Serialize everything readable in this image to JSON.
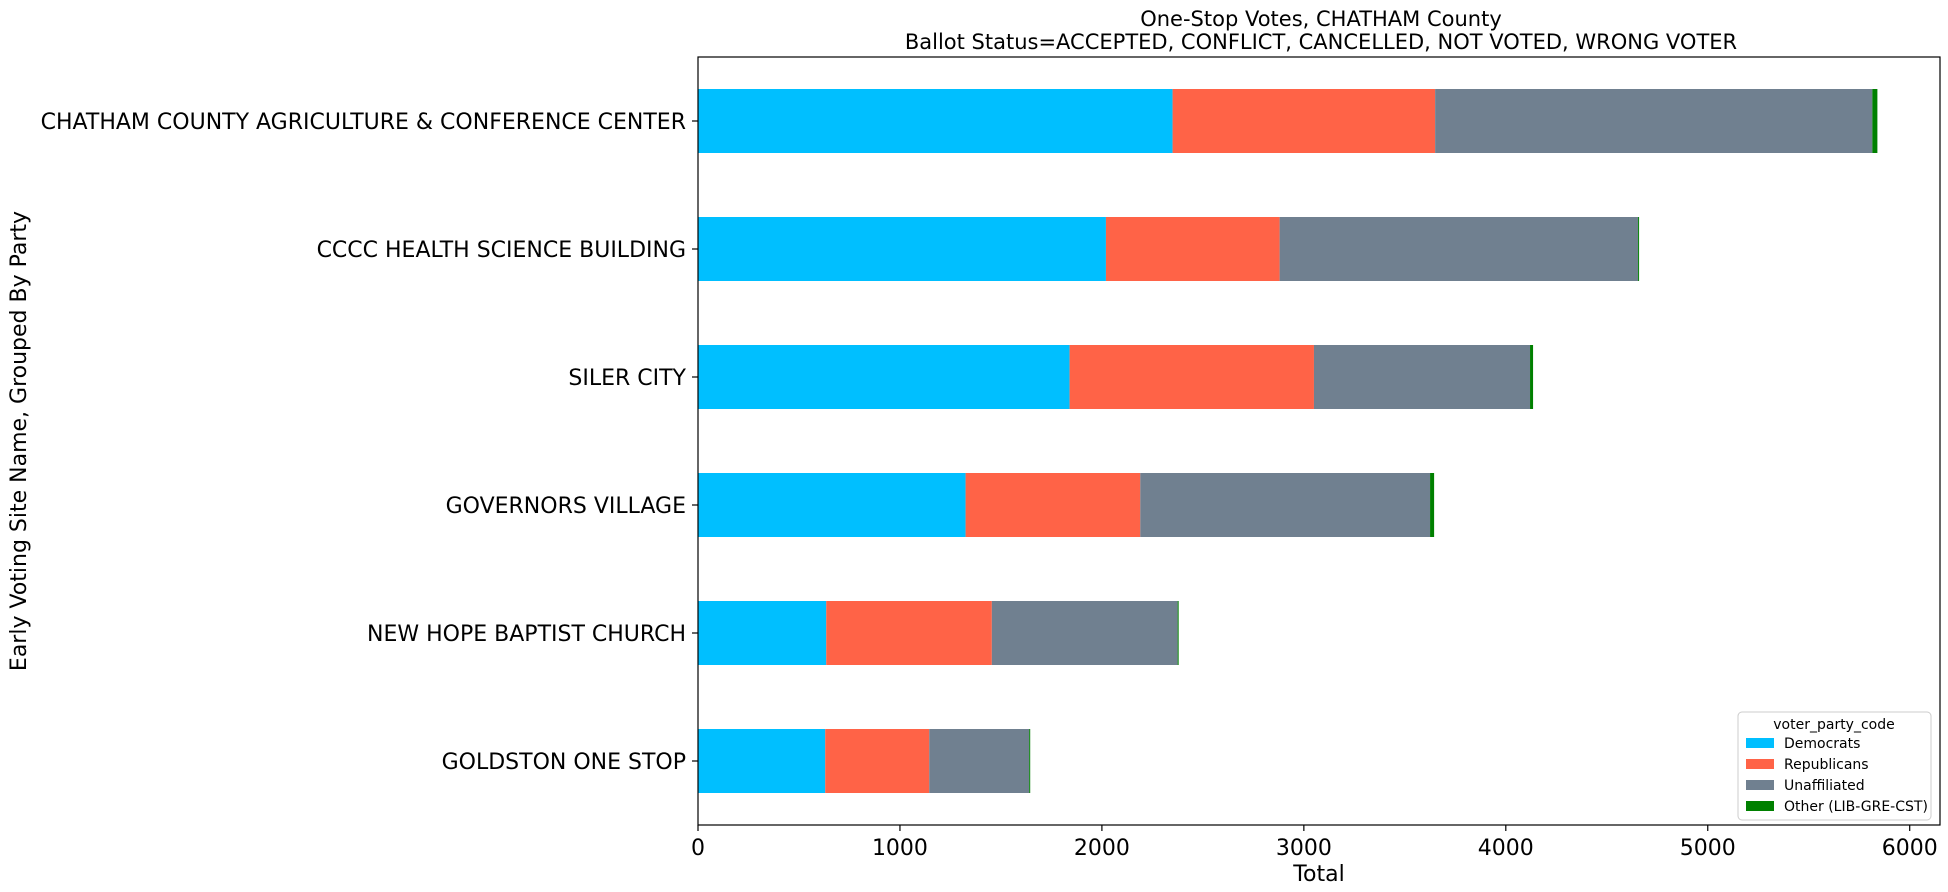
{
  "chart_data": {
    "type": "bar",
    "orientation": "horizontal",
    "stacked": true,
    "title": "One-Stop Votes, CHATHAM County",
    "subtitle": "Ballot Status=ACCEPTED, CONFLICT, CANCELLED, NOT VOTED, WRONG VOTER",
    "xlabel": "Total",
    "ylabel": "Early Voting Site Name, Grouped By Party",
    "xlim": [
      0,
      6150
    ],
    "xticks": [
      0,
      1000,
      2000,
      3000,
      4000,
      5000,
      6000
    ],
    "grid": false,
    "legend_title": "voter_party_code",
    "legend_position": "lower-right",
    "categories": [
      "CHATHAM COUNTY AGRICULTURE & CONFERENCE CENTER",
      "CCCC HEALTH SCIENCE BUILDING",
      "SILER CITY",
      "GOVERNORS VILLAGE",
      "NEW HOPE BAPTIST CHURCH",
      "GOLDSTON ONE STOP"
    ],
    "series": [
      {
        "name": "Democrats",
        "color": "#00bfff",
        "values": [
          2350,
          2020,
          1840,
          1325,
          635,
          630
        ]
      },
      {
        "name": "Republicans",
        "color": "#ff6347",
        "values": [
          1300,
          860,
          1210,
          865,
          820,
          515
        ]
      },
      {
        "name": "Unaffiliated",
        "color": "#708090",
        "values": [
          2165,
          1775,
          1070,
          1435,
          920,
          495
        ]
      },
      {
        "name": "Other (LIB-GRE-CST)",
        "color": "#008000",
        "values": [
          25,
          5,
          15,
          20,
          5,
          5
        ]
      }
    ]
  }
}
